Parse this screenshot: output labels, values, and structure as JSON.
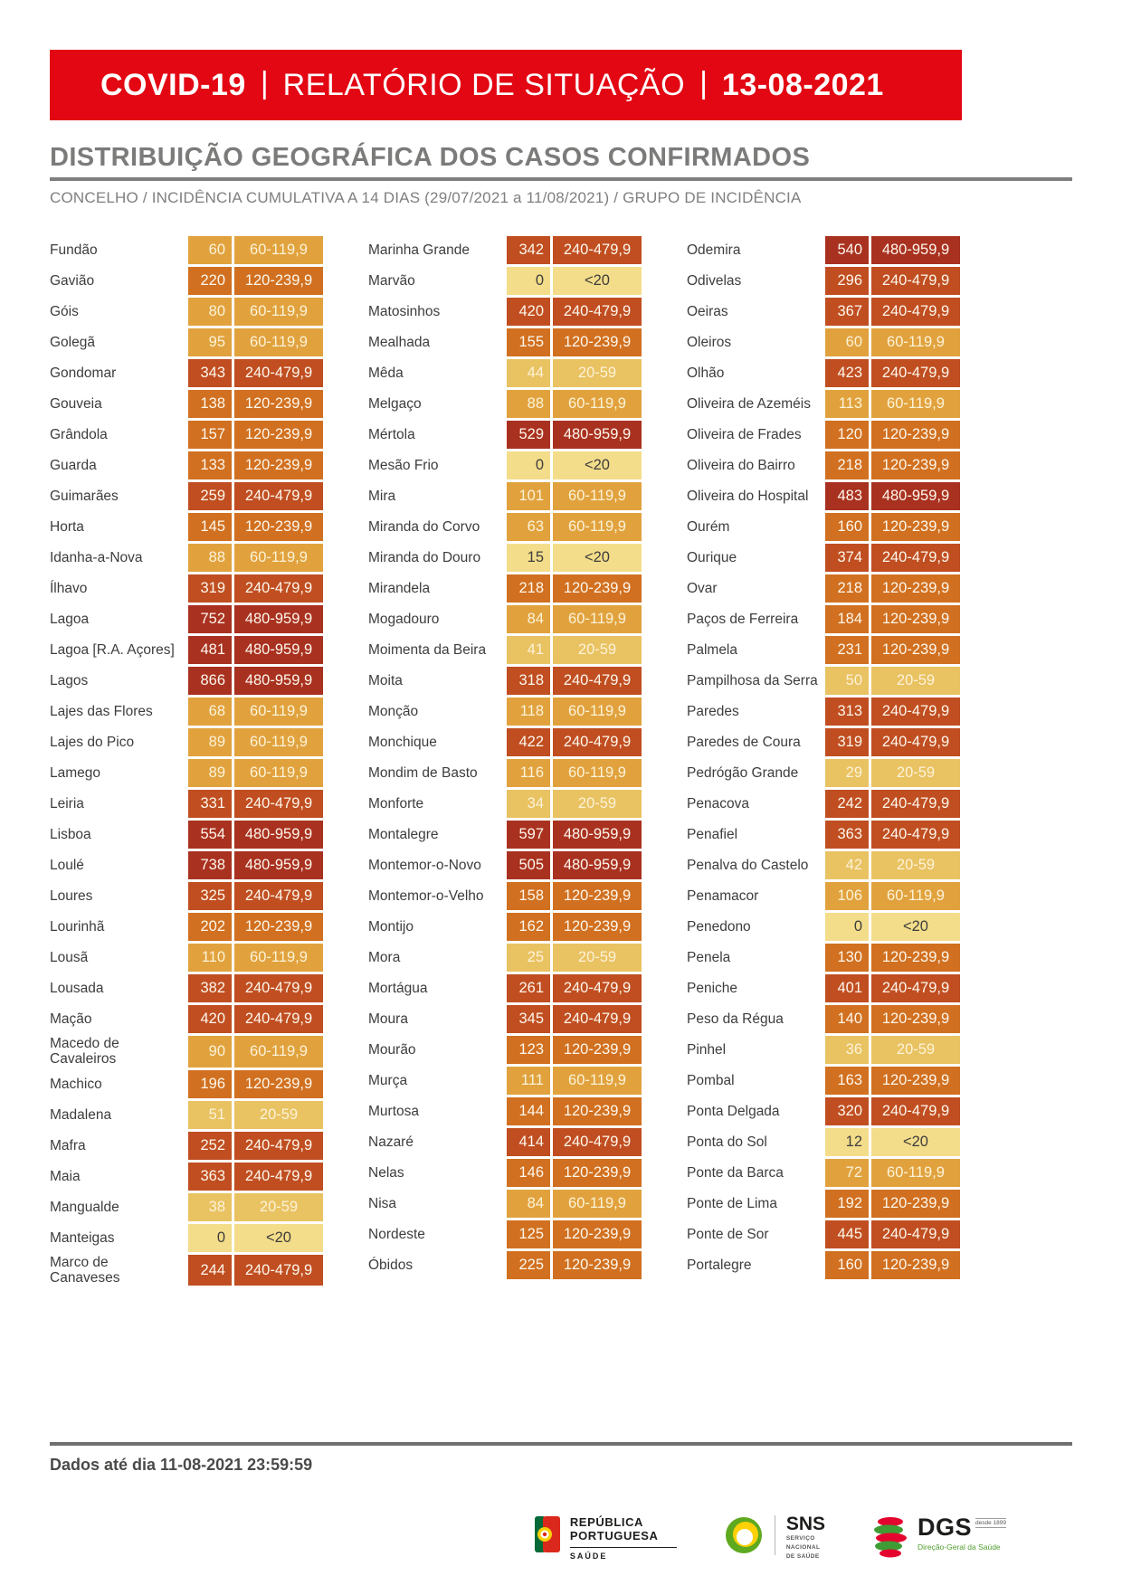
{
  "header": {
    "banner": {
      "brand": "COVID-19",
      "separator": "|",
      "title": "RELATÓRIO DE SITUAÇÃO",
      "date": "13-08-2021",
      "bg_color": "#e30613"
    },
    "page_title": "DISTRIBUIÇÃO GEOGRÁFICA DOS CASOS CONFIRMADOS",
    "subtitle": "CONCELHO / INCIDÊNCIA CUMULATIVA A 14 DIAS (29/07/2021 a 11/08/2021) / GRUPO DE INCIDÊNCIA"
  },
  "incidence_groups": {
    "<20": {
      "bg": "#f3dd8a",
      "fg": "#3e3d3c"
    },
    "20-59": {
      "bg": "#e9c262",
      "fg": "#fcf3d8"
    },
    "60-119,9": {
      "bg": "#e1a23e",
      "fg": "#fcf3d8"
    },
    "120-239,9": {
      "bg": "#d17020",
      "fg": "#fdf7ec"
    },
    "240-479,9": {
      "bg": "#c04e21",
      "fg": "#fdf7ec"
    },
    "480-959,9": {
      "bg": "#a93120",
      "fg": "#fdf7ec"
    }
  },
  "table": {
    "columns": [
      {
        "rows": [
          {
            "name": "Fundão",
            "value": 60,
            "group": "60-119,9"
          },
          {
            "name": "Gavião",
            "value": 220,
            "group": "120-239,9"
          },
          {
            "name": "Góis",
            "value": 80,
            "group": "60-119,9"
          },
          {
            "name": "Golegã",
            "value": 95,
            "group": "60-119,9"
          },
          {
            "name": "Gondomar",
            "value": 343,
            "group": "240-479,9"
          },
          {
            "name": "Gouveia",
            "value": 138,
            "group": "120-239,9"
          },
          {
            "name": "Grândola",
            "value": 157,
            "group": "120-239,9"
          },
          {
            "name": "Guarda",
            "value": 133,
            "group": "120-239,9"
          },
          {
            "name": "Guimarães",
            "value": 259,
            "group": "240-479,9"
          },
          {
            "name": "Horta",
            "value": 145,
            "group": "120-239,9"
          },
          {
            "name": "Idanha-a-Nova",
            "value": 88,
            "group": "60-119,9"
          },
          {
            "name": "Ílhavo",
            "value": 319,
            "group": "240-479,9"
          },
          {
            "name": "Lagoa",
            "value": 752,
            "group": "480-959,9"
          },
          {
            "name": "Lagoa [R.A. Açores]",
            "value": 481,
            "group": "480-959,9"
          },
          {
            "name": "Lagos",
            "value": 866,
            "group": "480-959,9"
          },
          {
            "name": "Lajes das Flores",
            "value": 68,
            "group": "60-119,9"
          },
          {
            "name": "Lajes do Pico",
            "value": 89,
            "group": "60-119,9"
          },
          {
            "name": "Lamego",
            "value": 89,
            "group": "60-119,9"
          },
          {
            "name": "Leiria",
            "value": 331,
            "group": "240-479,9"
          },
          {
            "name": "Lisboa",
            "value": 554,
            "group": "480-959,9"
          },
          {
            "name": "Loulé",
            "value": 738,
            "group": "480-959,9"
          },
          {
            "name": "Loures",
            "value": 325,
            "group": "240-479,9"
          },
          {
            "name": "Lourinhã",
            "value": 202,
            "group": "120-239,9"
          },
          {
            "name": "Lousã",
            "value": 110,
            "group": "60-119,9"
          },
          {
            "name": "Lousada",
            "value": 382,
            "group": "240-479,9"
          },
          {
            "name": "Mação",
            "value": 420,
            "group": "240-479,9"
          },
          {
            "name": "Macedo de Cavaleiros",
            "value": 90,
            "group": "60-119,9"
          },
          {
            "name": "Machico",
            "value": 196,
            "group": "120-239,9"
          },
          {
            "name": "Madalena",
            "value": 51,
            "group": "20-59"
          },
          {
            "name": "Mafra",
            "value": 252,
            "group": "240-479,9"
          },
          {
            "name": "Maia",
            "value": 363,
            "group": "240-479,9"
          },
          {
            "name": "Mangualde",
            "value": 38,
            "group": "20-59"
          },
          {
            "name": "Manteigas",
            "value": 0,
            "group": "<20"
          },
          {
            "name": "Marco de Canaveses",
            "value": 244,
            "group": "240-479,9"
          }
        ]
      },
      {
        "rows": [
          {
            "name": "Marinha Grande",
            "value": 342,
            "group": "240-479,9"
          },
          {
            "name": "Marvão",
            "value": 0,
            "group": "<20"
          },
          {
            "name": "Matosinhos",
            "value": 420,
            "group": "240-479,9"
          },
          {
            "name": "Mealhada",
            "value": 155,
            "group": "120-239,9"
          },
          {
            "name": "Mêda",
            "value": 44,
            "group": "20-59"
          },
          {
            "name": "Melgaço",
            "value": 88,
            "group": "60-119,9"
          },
          {
            "name": "Mértola",
            "value": 529,
            "group": "480-959,9"
          },
          {
            "name": "Mesão Frio",
            "value": 0,
            "group": "<20"
          },
          {
            "name": "Mira",
            "value": 101,
            "group": "60-119,9"
          },
          {
            "name": "Miranda do Corvo",
            "value": 63,
            "group": "60-119,9"
          },
          {
            "name": "Miranda do Douro",
            "value": 15,
            "group": "<20"
          },
          {
            "name": "Mirandela",
            "value": 218,
            "group": "120-239,9"
          },
          {
            "name": "Mogadouro",
            "value": 84,
            "group": "60-119,9"
          },
          {
            "name": "Moimenta da Beira",
            "value": 41,
            "group": "20-59"
          },
          {
            "name": "Moita",
            "value": 318,
            "group": "240-479,9"
          },
          {
            "name": "Monção",
            "value": 118,
            "group": "60-119,9"
          },
          {
            "name": "Monchique",
            "value": 422,
            "group": "240-479,9"
          },
          {
            "name": "Mondim de Basto",
            "value": 116,
            "group": "60-119,9"
          },
          {
            "name": "Monforte",
            "value": 34,
            "group": "20-59"
          },
          {
            "name": "Montalegre",
            "value": 597,
            "group": "480-959,9"
          },
          {
            "name": "Montemor-o-Novo",
            "value": 505,
            "group": "480-959,9"
          },
          {
            "name": "Montemor-o-Velho",
            "value": 158,
            "group": "120-239,9"
          },
          {
            "name": "Montijo",
            "value": 162,
            "group": "120-239,9"
          },
          {
            "name": "Mora",
            "value": 25,
            "group": "20-59"
          },
          {
            "name": "Mortágua",
            "value": 261,
            "group": "240-479,9"
          },
          {
            "name": "Moura",
            "value": 345,
            "group": "240-479,9"
          },
          {
            "name": "Mourão",
            "value": 123,
            "group": "120-239,9"
          },
          {
            "name": "Murça",
            "value": 111,
            "group": "60-119,9"
          },
          {
            "name": "Murtosa",
            "value": 144,
            "group": "120-239,9"
          },
          {
            "name": "Nazaré",
            "value": 414,
            "group": "240-479,9"
          },
          {
            "name": "Nelas",
            "value": 146,
            "group": "120-239,9"
          },
          {
            "name": "Nisa",
            "value": 84,
            "group": "60-119,9"
          },
          {
            "name": "Nordeste",
            "value": 125,
            "group": "120-239,9"
          },
          {
            "name": "Óbidos",
            "value": 225,
            "group": "120-239,9"
          }
        ]
      },
      {
        "rows": [
          {
            "name": "Odemira",
            "value": 540,
            "group": "480-959,9"
          },
          {
            "name": "Odivelas",
            "value": 296,
            "group": "240-479,9"
          },
          {
            "name": "Oeiras",
            "value": 367,
            "group": "240-479,9"
          },
          {
            "name": "Oleiros",
            "value": 60,
            "group": "60-119,9"
          },
          {
            "name": "Olhão",
            "value": 423,
            "group": "240-479,9"
          },
          {
            "name": "Oliveira de Azeméis",
            "value": 113,
            "group": "60-119,9"
          },
          {
            "name": "Oliveira de Frades",
            "value": 120,
            "group": "120-239,9"
          },
          {
            "name": "Oliveira do Bairro",
            "value": 218,
            "group": "120-239,9"
          },
          {
            "name": "Oliveira do Hospital",
            "value": 483,
            "group": "480-959,9"
          },
          {
            "name": "Ourém",
            "value": 160,
            "group": "120-239,9"
          },
          {
            "name": "Ourique",
            "value": 374,
            "group": "240-479,9"
          },
          {
            "name": "Ovar",
            "value": 218,
            "group": "120-239,9"
          },
          {
            "name": "Paços de Ferreira",
            "value": 184,
            "group": "120-239,9"
          },
          {
            "name": "Palmela",
            "value": 231,
            "group": "120-239,9"
          },
          {
            "name": "Pampilhosa da Serra",
            "value": 50,
            "group": "20-59"
          },
          {
            "name": "Paredes",
            "value": 313,
            "group": "240-479,9"
          },
          {
            "name": "Paredes de Coura",
            "value": 319,
            "group": "240-479,9"
          },
          {
            "name": "Pedrógão Grande",
            "value": 29,
            "group": "20-59"
          },
          {
            "name": "Penacova",
            "value": 242,
            "group": "240-479,9"
          },
          {
            "name": "Penafiel",
            "value": 363,
            "group": "240-479,9"
          },
          {
            "name": "Penalva do Castelo",
            "value": 42,
            "group": "20-59"
          },
          {
            "name": "Penamacor",
            "value": 106,
            "group": "60-119,9"
          },
          {
            "name": "Penedono",
            "value": 0,
            "group": "<20"
          },
          {
            "name": "Penela",
            "value": 130,
            "group": "120-239,9"
          },
          {
            "name": "Peniche",
            "value": 401,
            "group": "240-479,9"
          },
          {
            "name": "Peso da Régua",
            "value": 140,
            "group": "120-239,9"
          },
          {
            "name": "Pinhel",
            "value": 36,
            "group": "20-59"
          },
          {
            "name": "Pombal",
            "value": 163,
            "group": "120-239,9"
          },
          {
            "name": "Ponta Delgada",
            "value": 320,
            "group": "240-479,9"
          },
          {
            "name": "Ponta do Sol",
            "value": 12,
            "group": "<20"
          },
          {
            "name": "Ponte da Barca",
            "value": 72,
            "group": "60-119,9"
          },
          {
            "name": "Ponte de Lima",
            "value": 192,
            "group": "120-239,9"
          },
          {
            "name": "Ponte de Sor",
            "value": 445,
            "group": "240-479,9"
          },
          {
            "name": "Portalegre",
            "value": 160,
            "group": "120-239,9"
          }
        ]
      }
    ]
  },
  "footer": {
    "data_note": "Dados até dia 11-08-2021 23:59:59",
    "logos": {
      "republica": {
        "line1": "REPÚBLICA",
        "line2": "PORTUGUESA",
        "line3": "SAÚDE"
      },
      "sns": {
        "acronym": "SNS",
        "sub1": "SERVIÇO",
        "sub2": "NACIONAL",
        "sub3": "DE SAÚDE"
      },
      "dgs": {
        "acronym": "DGS",
        "since": "desde 1899",
        "sub": "Direção-Geral da Saúde"
      }
    }
  }
}
